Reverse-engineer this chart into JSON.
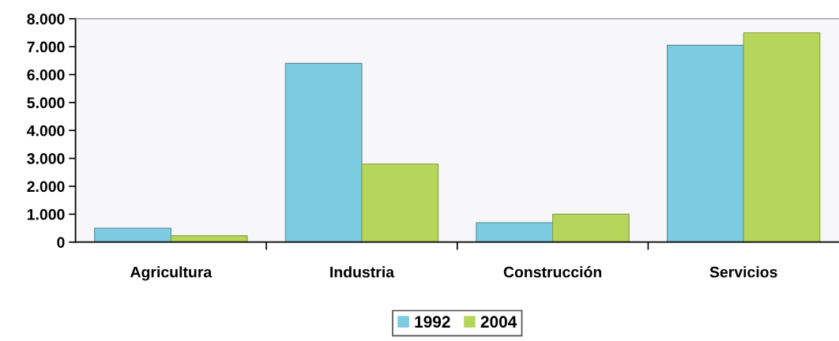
{
  "chart_data": {
    "type": "bar",
    "categories": [
      "Agricultura",
      "Industria",
      "Construcción",
      "Servicios"
    ],
    "series": [
      {
        "name": "1992",
        "color": "#7ccbe0",
        "values": [
          500,
          6400,
          700,
          7050
        ]
      },
      {
        "name": "2004",
        "color": "#b5d65a",
        "values": [
          230,
          2800,
          1000,
          7500
        ]
      }
    ],
    "ylim": [
      0,
      8000
    ],
    "yticks": [
      {
        "value": 0,
        "label": "0"
      },
      {
        "value": 1000,
        "label": "1.000"
      },
      {
        "value": 2000,
        "label": "2.000"
      },
      {
        "value": 3000,
        "label": "3.000"
      },
      {
        "value": 4000,
        "label": "4.000"
      },
      {
        "value": 5000,
        "label": "5.000"
      },
      {
        "value": 6000,
        "label": "6.000"
      },
      {
        "value": 7000,
        "label": "7.000"
      },
      {
        "value": 8000,
        "label": "8.000"
      }
    ],
    "legend": "bottom"
  }
}
